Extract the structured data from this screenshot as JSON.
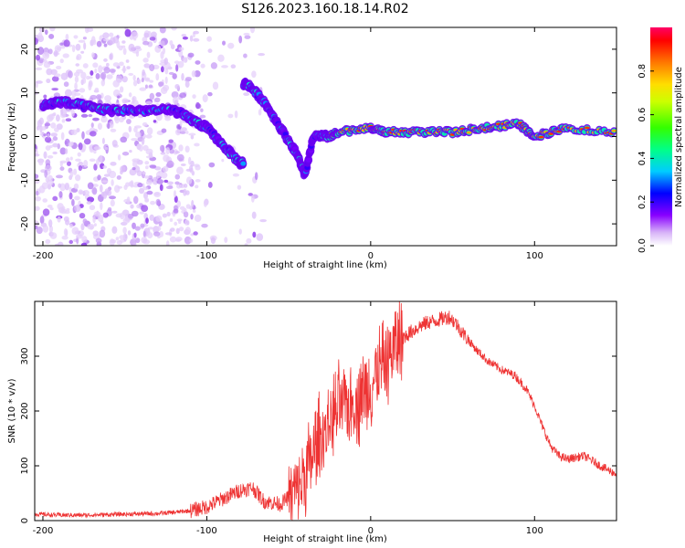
{
  "title": "S126.2023.160.18.14.R02",
  "chart_data": [
    {
      "type": "heatmap",
      "xlabel": "Height of straight line (km)",
      "ylabel": "Frequency (Hz)",
      "xlim": [
        -205,
        150
      ],
      "ylim": [
        -25,
        25
      ],
      "x_ticks": [
        "-200",
        "-100",
        "0",
        "100"
      ],
      "y_ticks": [
        "-20",
        "-10",
        "0",
        "10",
        "20"
      ],
      "colorbar": {
        "label": "Normalized spectral amplitude",
        "range": [
          0,
          1
        ],
        "ticks": [
          "0.0",
          "0.2",
          "0.4",
          "0.6",
          "0.8"
        ]
      },
      "ridge": [
        {
          "x": -200,
          "y": 7
        },
        {
          "x": -190,
          "y": 8
        },
        {
          "x": -175,
          "y": 7
        },
        {
          "x": -160,
          "y": 6
        },
        {
          "x": -140,
          "y": 6
        },
        {
          "x": -120,
          "y": 6
        },
        {
          "x": -110,
          "y": 4
        },
        {
          "x": -100,
          "y": 2
        },
        {
          "x": -90,
          "y": -2
        },
        {
          "x": -80,
          "y": -6
        },
        {
          "x": -75,
          "y": 12
        },
        {
          "x": -65,
          "y": 8
        },
        {
          "x": -55,
          "y": 2
        },
        {
          "x": -45,
          "y": -4
        },
        {
          "x": -40,
          "y": -9
        },
        {
          "x": -35,
          "y": 0
        },
        {
          "x": -25,
          "y": 0
        },
        {
          "x": -20,
          "y": 1
        },
        {
          "x": 0,
          "y": 2
        },
        {
          "x": 10,
          "y": 1
        },
        {
          "x": 30,
          "y": 1
        },
        {
          "x": 50,
          "y": 1
        },
        {
          "x": 70,
          "y": 2
        },
        {
          "x": 90,
          "y": 3
        },
        {
          "x": 100,
          "y": 0
        },
        {
          "x": 120,
          "y": 2
        },
        {
          "x": 150,
          "y": 1
        }
      ]
    },
    {
      "type": "line",
      "xlabel": "Height of straight line (km)",
      "ylabel": "SNR (10 * v/v)",
      "xlim": [
        -205,
        150
      ],
      "ylim": [
        0,
        400
      ],
      "x_ticks": [
        "-200",
        "-100",
        "0",
        "100"
      ],
      "y_ticks": [
        "0",
        "100",
        "200",
        "300"
      ],
      "series": [
        {
          "color": "#ee3333",
          "x": [
            -205,
            -190,
            -175,
            -160,
            -145,
            -130,
            -120,
            -110,
            -100,
            -90,
            -80,
            -72,
            -65,
            -55,
            -45,
            -40,
            -35,
            -30,
            -25,
            -20,
            -15,
            -10,
            -5,
            0,
            5,
            10,
            15,
            20,
            25,
            30,
            35,
            40,
            45,
            48,
            52,
            58,
            65,
            72,
            80,
            88,
            95,
            100,
            105,
            110,
            115,
            120,
            125,
            130,
            135,
            140,
            145,
            150
          ],
          "y": [
            12,
            10,
            10,
            11,
            12,
            13,
            15,
            18,
            25,
            40,
            55,
            60,
            35,
            30,
            55,
            80,
            120,
            150,
            180,
            200,
            210,
            220,
            230,
            250,
            270,
            295,
            320,
            335,
            345,
            355,
            362,
            365,
            370,
            372,
            360,
            335,
            310,
            290,
            275,
            265,
            240,
            210,
            170,
            135,
            118,
            112,
            115,
            118,
            110,
            100,
            92,
            85
          ]
        }
      ]
    }
  ]
}
